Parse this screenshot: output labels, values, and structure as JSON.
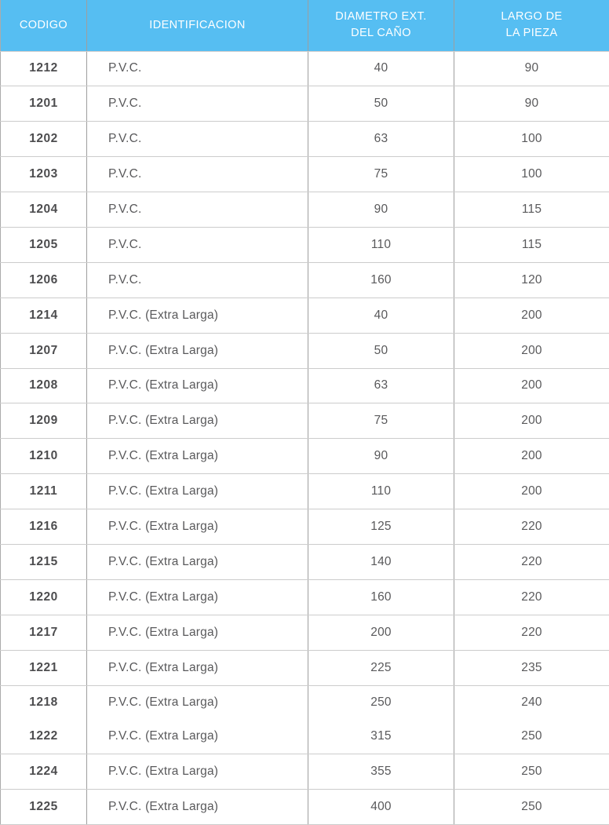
{
  "colors": {
    "header_bg": "#56BEF2",
    "header_text": "#FFFFFF",
    "code_text": "#4D4D4F",
    "cell_text": "#59595B",
    "vertical_border": "#9E9E9E",
    "horizontal_border": "#CCCCCC"
  },
  "table": {
    "headers": [
      {
        "label": "CODIGO"
      },
      {
        "label": "IDENTIFICACION"
      },
      {
        "label": "DIAMETRO EXT.\nDEL CAÑO"
      },
      {
        "label": "LARGO DE\nLA PIEZA"
      }
    ],
    "rows": [
      {
        "codigo": "1212",
        "identificacion": "P.V.C.",
        "diametro": "40",
        "largo": "90"
      },
      {
        "codigo": "1201",
        "identificacion": "P.V.C.",
        "diametro": "50",
        "largo": "90"
      },
      {
        "codigo": "1202",
        "identificacion": "P.V.C.",
        "diametro": "63",
        "largo": "100"
      },
      {
        "codigo": "1203",
        "identificacion": "P.V.C.",
        "diametro": "75",
        "largo": "100"
      },
      {
        "codigo": "1204",
        "identificacion": "P.V.C.",
        "diametro": "90",
        "largo": "115"
      },
      {
        "codigo": "1205",
        "identificacion": "P.V.C.",
        "diametro": "110",
        "largo": "115"
      },
      {
        "codigo": "1206",
        "identificacion": "P.V.C.",
        "diametro": "160",
        "largo": "120"
      },
      {
        "codigo": "1214",
        "identificacion": "P.V.C. (Extra Larga)",
        "diametro": "40",
        "largo": "200"
      },
      {
        "codigo": "1207",
        "identificacion": "P.V.C. (Extra Larga)",
        "diametro": "50",
        "largo": "200"
      },
      {
        "codigo": "1208",
        "identificacion": "P.V.C. (Extra Larga)",
        "diametro": "63",
        "largo": "200"
      },
      {
        "codigo": "1209",
        "identificacion": "P.V.C. (Extra Larga)",
        "diametro": "75",
        "largo": "200"
      },
      {
        "codigo": "1210",
        "identificacion": "P.V.C. (Extra Larga)",
        "diametro": "90",
        "largo": "200"
      },
      {
        "codigo": "1211",
        "identificacion": "P.V.C. (Extra Larga)",
        "diametro": "110",
        "largo": "200"
      },
      {
        "codigo": "1216",
        "identificacion": "P.V.C. (Extra Larga)",
        "diametro": "125",
        "largo": "220"
      },
      {
        "codigo": "1215",
        "identificacion": "P.V.C. (Extra Larga)",
        "diametro": "140",
        "largo": "220"
      },
      {
        "codigo": "1220",
        "identificacion": "P.V.C. (Extra Larga)",
        "diametro": "160",
        "largo": "220"
      },
      {
        "codigo": "1217",
        "identificacion": "P.V.C. (Extra Larga)",
        "diametro": "200",
        "largo": "220"
      },
      {
        "codigo": "1221",
        "identificacion": "P.V.C. (Extra Larga)",
        "diametro": "225",
        "largo": "235"
      },
      {
        "codigo": "1218",
        "identificacion": "P.V.C. (Extra Larga)",
        "diametro": "250",
        "largo": "240",
        "no_divider_below": true
      },
      {
        "codigo": "1222",
        "identificacion": "P.V.C. (Extra Larga)",
        "diametro": "315",
        "largo": "250"
      },
      {
        "codigo": "1224",
        "identificacion": "P.V.C. (Extra Larga)",
        "diametro": "355",
        "largo": "250"
      },
      {
        "codigo": "1225",
        "identificacion": "P.V.C. (Extra Larga)",
        "diametro": "400",
        "largo": "250"
      }
    ]
  }
}
